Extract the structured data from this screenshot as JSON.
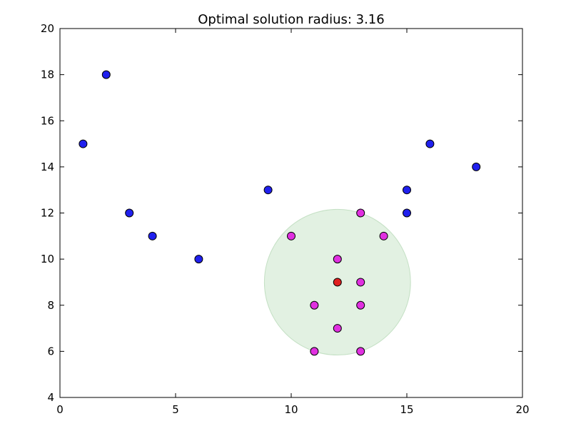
{
  "chart_data": {
    "type": "scatter",
    "title": "Optimal solution radius: 3.16",
    "xlabel": "",
    "ylabel": "",
    "xlim": [
      0,
      20
    ],
    "ylim": [
      4,
      20
    ],
    "xticks": [
      0,
      5,
      10,
      15,
      20
    ],
    "yticks": [
      4,
      6,
      8,
      10,
      12,
      14,
      16,
      18,
      20
    ],
    "grid": false,
    "series": [
      {
        "role": "outside-points",
        "color": "#2020ee",
        "points": [
          [
            1,
            15
          ],
          [
            2,
            18
          ],
          [
            3,
            12
          ],
          [
            4,
            11
          ],
          [
            6,
            10
          ],
          [
            9,
            13
          ],
          [
            15,
            13
          ],
          [
            15,
            12
          ],
          [
            16,
            15
          ],
          [
            18,
            14
          ]
        ]
      },
      {
        "role": "inside-points",
        "color": "#e030e0",
        "points": [
          [
            10,
            11
          ],
          [
            13,
            12
          ],
          [
            14,
            11
          ],
          [
            12,
            10
          ],
          [
            13,
            9
          ],
          [
            11,
            8
          ],
          [
            13,
            8
          ],
          [
            12,
            7
          ],
          [
            11,
            6
          ],
          [
            13,
            6
          ]
        ]
      },
      {
        "role": "center",
        "color": "#e02020",
        "points": [
          [
            12,
            9
          ]
        ]
      }
    ],
    "circle": {
      "center": [
        12,
        9
      ],
      "radius": 3.16,
      "fill": "#d8ecd8"
    }
  }
}
